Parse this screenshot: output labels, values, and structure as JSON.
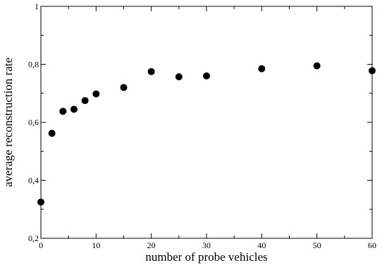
{
  "chart_data": {
    "type": "scatter",
    "title": "",
    "xlabel": "number of probe vehicles",
    "ylabel": "average reconstruction rate",
    "xlim": [
      0,
      60
    ],
    "ylim": [
      0.2,
      1.0
    ],
    "grid": false,
    "x_ticks": [
      0,
      10,
      20,
      30,
      40,
      50,
      60
    ],
    "x_tick_labels": [
      "0",
      "10",
      "20",
      "30",
      "40",
      "50",
      "60"
    ],
    "y_ticks": [
      0.2,
      0.4,
      0.6,
      0.8,
      1.0
    ],
    "y_tick_labels": [
      "0,2",
      "0,4",
      "0,6",
      "0,8",
      "1"
    ],
    "point_color": "#000000",
    "series": [
      {
        "x": [
          0,
          2,
          4,
          6,
          8,
          10,
          15,
          20,
          25,
          30,
          40,
          50,
          60
        ],
        "y": [
          0.325,
          0.562,
          0.638,
          0.645,
          0.675,
          0.698,
          0.72,
          0.775,
          0.757,
          0.76,
          0.785,
          0.795,
          0.778
        ]
      }
    ]
  }
}
